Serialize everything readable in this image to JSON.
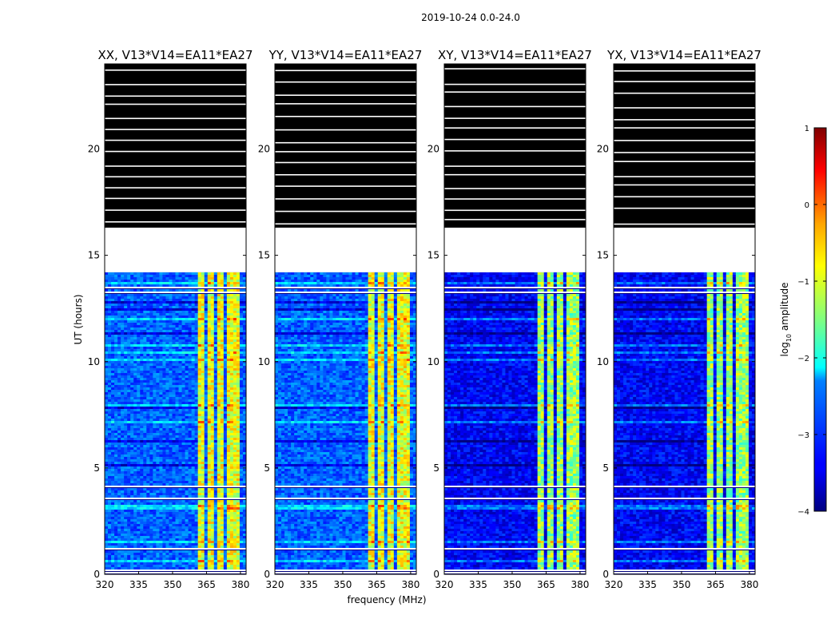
{
  "suptitle": "2019-10-24 0.0-24.0",
  "chart_data": {
    "type": "heatmap",
    "ylabel": "UT (hours)",
    "xlabel": "frequency (MHz)",
    "xlim": [
      320,
      382.5
    ],
    "ylim": [
      0,
      24
    ],
    "xticks": [
      320,
      335,
      350,
      365,
      380
    ],
    "yticks": [
      0,
      5,
      10,
      15,
      20
    ],
    "grid": false,
    "panels": [
      {
        "title": "XX, V13*V14=EA11*EA27",
        "noise_level": 0.22,
        "band_level": 0.58
      },
      {
        "title": "YY, V13*V14=EA11*EA27",
        "noise_level": 0.22,
        "band_level": 0.58
      },
      {
        "title": "XY, V13*V14=EA11*EA27",
        "noise_level": 0.12,
        "band_level": 0.5
      },
      {
        "title": "YX, V13*V14=EA11*EA27",
        "noise_level": 0.12,
        "band_level": 0.5
      }
    ],
    "flagged_region_hours": [
      16.3,
      24
    ],
    "data_gap_hours": [
      14.2,
      16.3
    ],
    "bright_band_mhz": [
      360,
      380
    ],
    "colorbar": {
      "label": "log",
      "label_subscript": "10",
      "label_suffix": " amplitude",
      "range": [
        -4,
        1
      ],
      "ticks": [
        1,
        0,
        -1,
        -2,
        -3,
        -4
      ],
      "colormap": "jet"
    }
  }
}
